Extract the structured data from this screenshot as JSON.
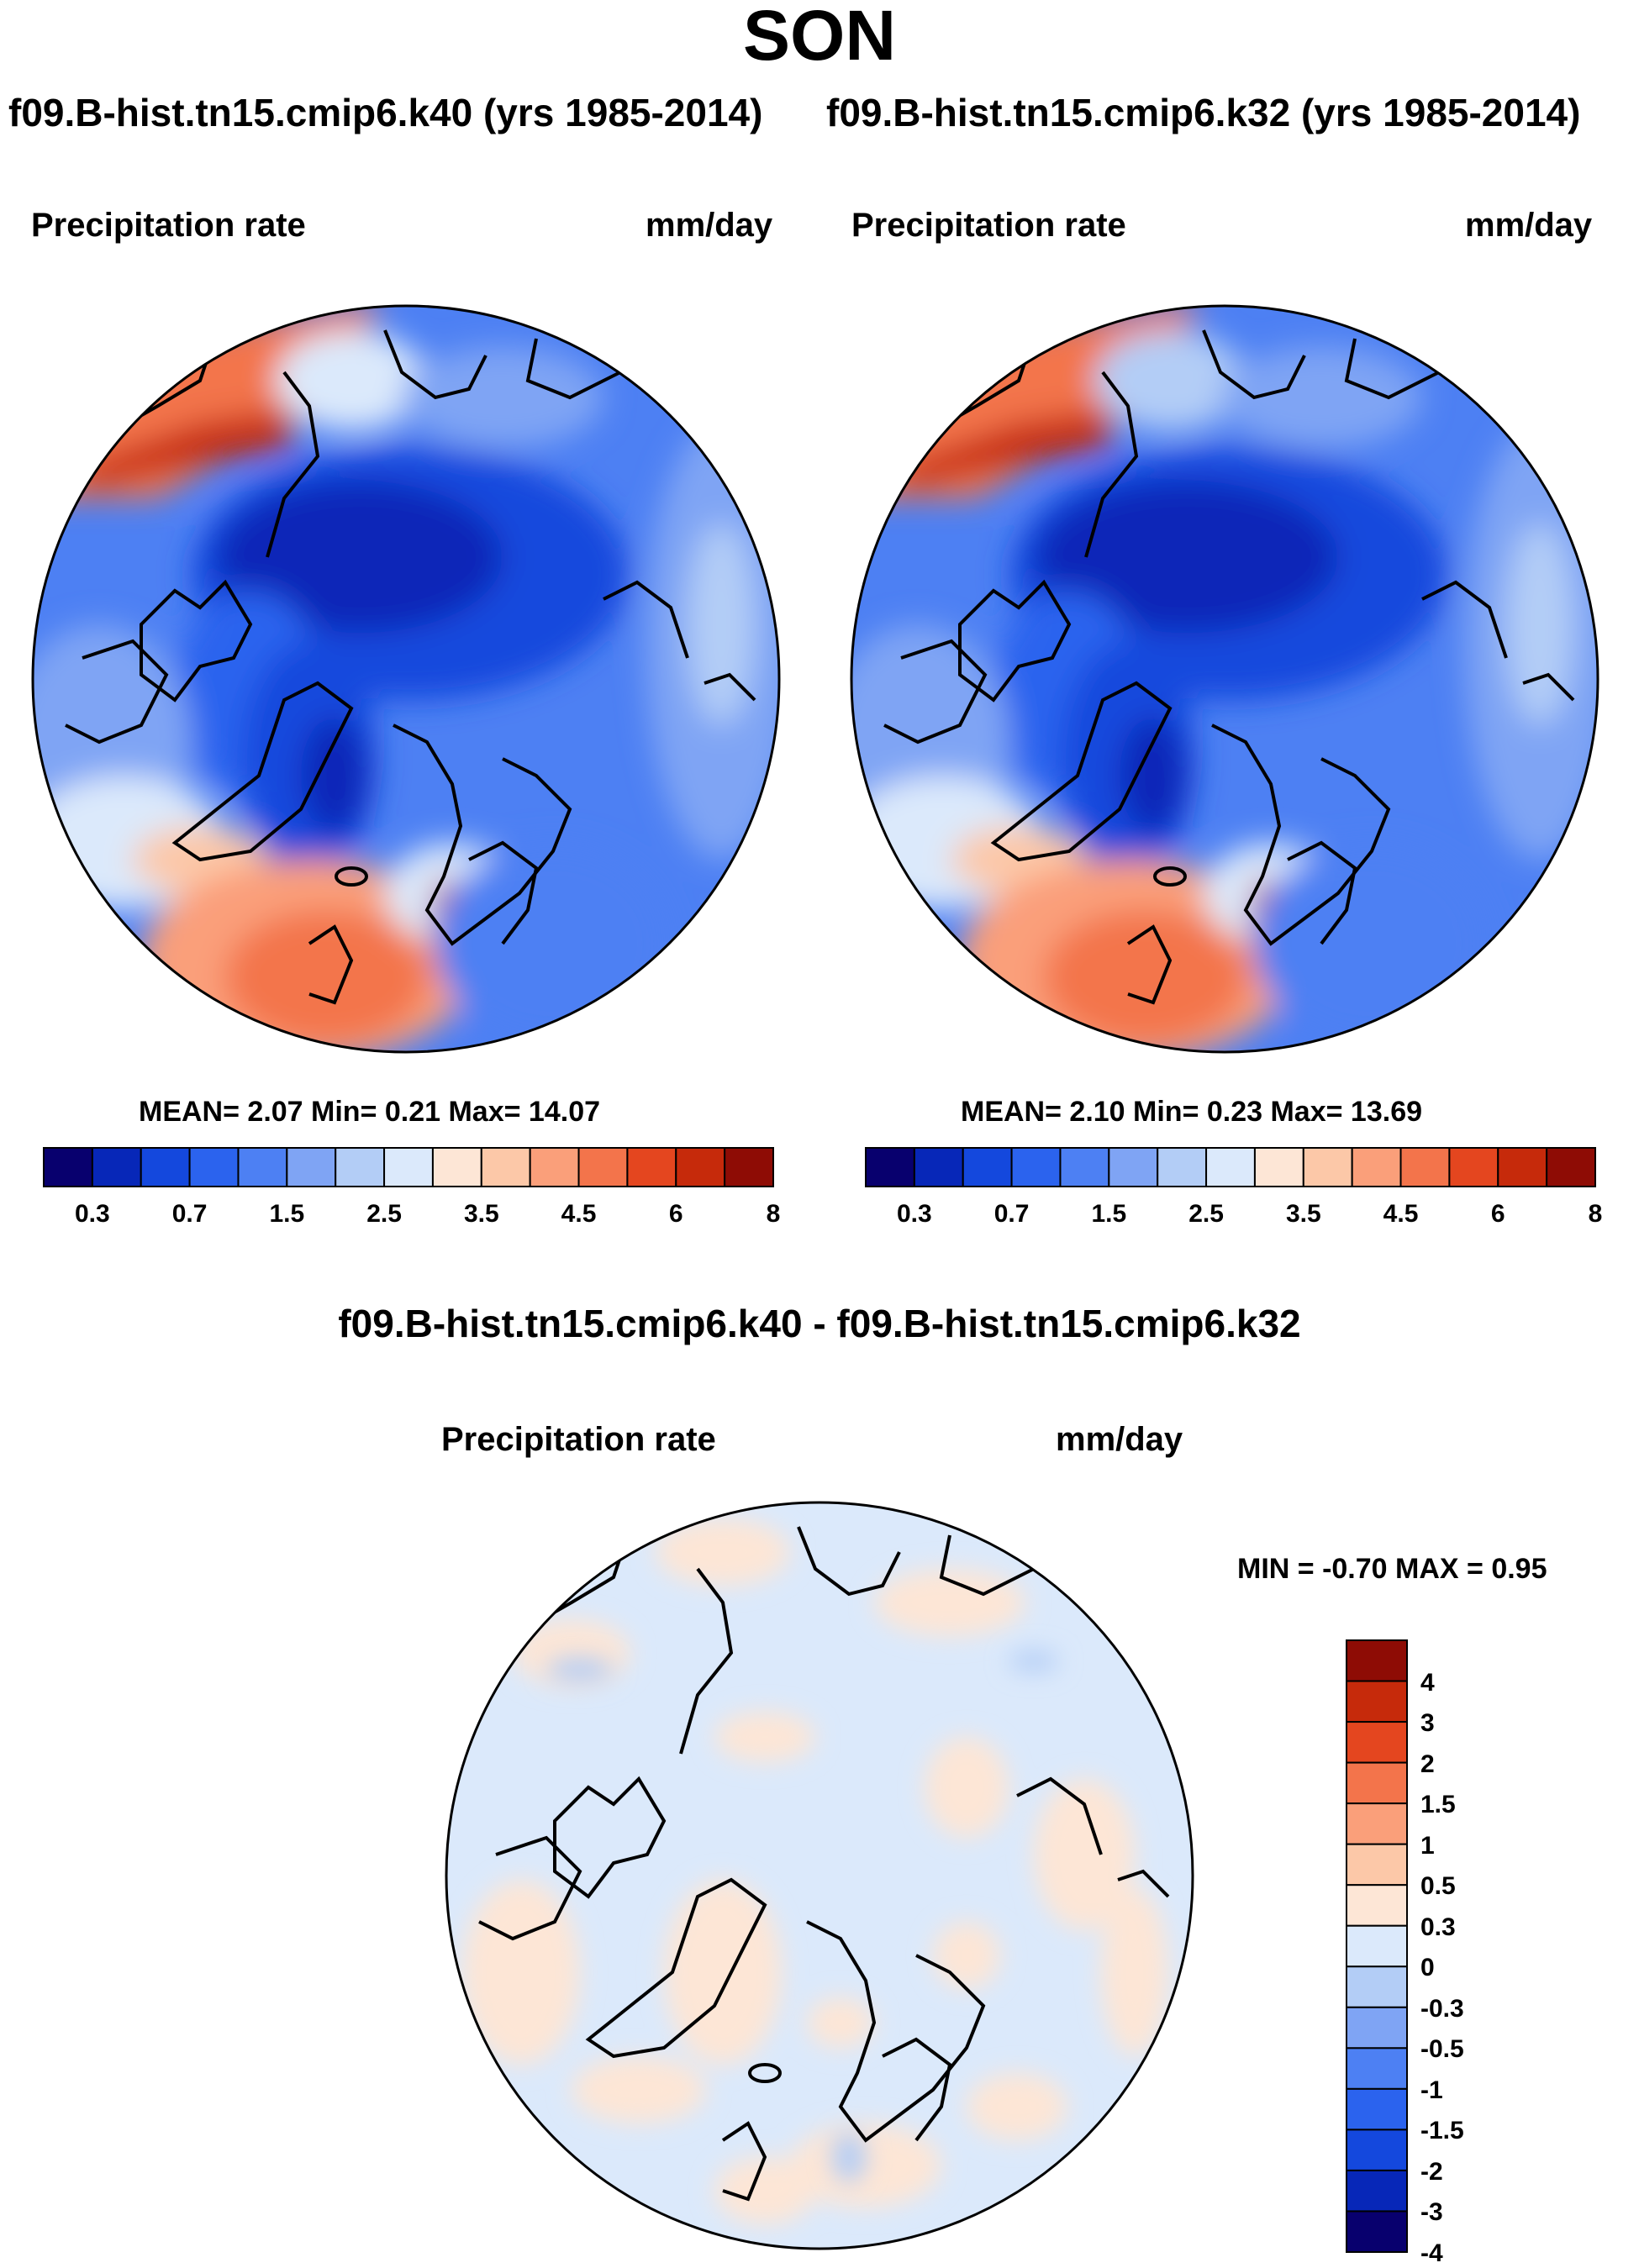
{
  "figure": {
    "season": "SON",
    "case_left": "f09.B-hist.tn15.cmip6.k40 (yrs 1985-2014)",
    "case_right": "f09.B-hist.tn15.cmip6.k32 (yrs 1985-2014)",
    "diff_title": "f09.B-hist.tn15.cmip6.k40 - f09.B-hist.tn15.cmip6.k32"
  },
  "panels": [
    {
      "variable": "Precipitation rate",
      "units": "mm/day",
      "stats": "MEAN=   2.07  Min=   0.21  Max=  14.07"
    },
    {
      "variable": "Precipitation rate",
      "units": "mm/day",
      "stats": "MEAN=   2.10  Min=   0.23  Max=  13.69"
    },
    {
      "variable": "Precipitation rate",
      "units": "mm/day",
      "stats": "MIN =  -0.70 MAX =   0.95"
    }
  ],
  "colorbars": {
    "abs_ticks": [
      "0.3",
      "0.7",
      "1.5",
      "2.5",
      "3.5",
      "4.5",
      "6",
      "8"
    ],
    "abs_colors": [
      "#08006e",
      "#0727b8",
      "#1448dd",
      "#2b63ee",
      "#4d80f3",
      "#7fa4f4",
      "#b3cdf6",
      "#dbe9fb",
      "#fde6d6",
      "#fcc8a8",
      "#fa9f7a",
      "#f3744b",
      "#e4461f",
      "#c62a0b",
      "#8e0c05"
    ],
    "diff_ticks": [
      "4",
      "3",
      "2",
      "1.5",
      "1",
      "0.5",
      "0.3",
      "0",
      "-0.3",
      "-0.5",
      "-1",
      "-1.5",
      "-2",
      "-3",
      "-4"
    ],
    "diff_colors": [
      "#8e0c05",
      "#c62a0b",
      "#e4461f",
      "#f3744b",
      "#fa9f7a",
      "#fcc8a8",
      "#fde6d6",
      "#dbe9fb",
      "#b3cdf6",
      "#7fa4f4",
      "#4d80f3",
      "#2b63ee",
      "#1448dd",
      "#0727b8",
      "#08006e"
    ]
  }
}
